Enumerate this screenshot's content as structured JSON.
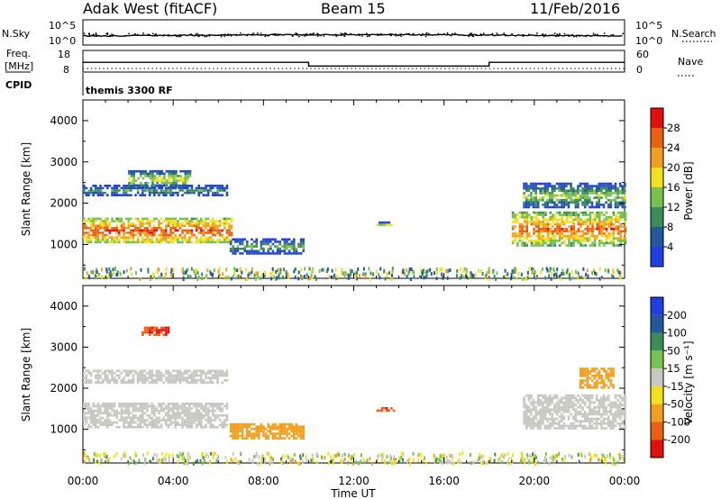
{
  "header": {
    "radar": "Adak West (fitACF)",
    "beam": "Beam 15",
    "date": "11/Feb/2016"
  },
  "nsky_panel": {
    "left_label": "N.Sky",
    "left_ticks": [
      "10^5",
      "10^0"
    ],
    "right_label": "N.Search",
    "right_ticks": [
      "10^5",
      "10^0"
    ]
  },
  "freq_panel": {
    "left_label_line1": "Freq.",
    "left_label_line2": "[MHz]",
    "left_ticks": [
      "18",
      "8"
    ],
    "right_label": "Nave",
    "right_ticks": [
      "60",
      "0"
    ]
  },
  "cpid": {
    "label": "CPID",
    "program": "themis 3300 RF"
  },
  "power_panel": {
    "ylabel": "Slant Range [km]",
    "yticks": [
      "1000",
      "2000",
      "3000",
      "4000"
    ],
    "colorbar_label": "Power [dB]",
    "colorbar_ticks": [
      "4",
      "8",
      "12",
      "16",
      "20",
      "24",
      "28"
    ],
    "colors": [
      "#1f3fe0",
      "#24589a",
      "#3c8c5a",
      "#78c050",
      "#f0e020",
      "#f0a020",
      "#e86010",
      "#e01010"
    ]
  },
  "velocity_panel": {
    "ylabel": "Slant Range [km]",
    "yticks": [
      "1000",
      "2000",
      "3000",
      "4000"
    ],
    "colorbar_label": "Velocity [m s⁻¹]",
    "colorbar_ticks": [
      "200",
      "100",
      "50",
      "15",
      "-15",
      "-50",
      "-100",
      "-200"
    ],
    "colors": [
      "#1f3fe0",
      "#24589a",
      "#3c8c5a",
      "#78c050",
      "#c8c8c0",
      "#f0e020",
      "#f0a020",
      "#e86010",
      "#e01010"
    ]
  },
  "x_axis": {
    "label": "Time UT",
    "ticks": [
      "00:00",
      "04:00",
      "08:00",
      "12:00",
      "16:00",
      "20:00",
      "00:00"
    ]
  },
  "chart_data": {
    "type": "heatmap",
    "x_unit": "hours UT",
    "x_range": [
      0,
      24
    ],
    "y_range_km": [
      180,
      4500
    ],
    "frequency_mhz": [
      {
        "from_hour": 0,
        "to_hour": 10,
        "value": 12.5
      },
      {
        "from_hour": 10,
        "to_hour": 18,
        "value": 10.8
      },
      {
        "from_hour": 18,
        "to_hour": 24,
        "value": 12.5
      }
    ],
    "nave_approx": 10,
    "power_regions": [
      {
        "t": [
          0,
          6.6
        ],
        "range_km": [
          1050,
          1650
        ],
        "power_db": 24
      },
      {
        "t": [
          0,
          6.4
        ],
        "range_km": [
          2200,
          2450
        ],
        "power_db": 8
      },
      {
        "t": [
          2.0,
          4.8
        ],
        "range_km": [
          2400,
          2800
        ],
        "power_db": 14
      },
      {
        "t": [
          6.5,
          9.8
        ],
        "range_km": [
          780,
          1150
        ],
        "power_db": 9
      },
      {
        "t": [
          13.0,
          13.8
        ],
        "range_km": [
          1450,
          1560
        ],
        "power_db": 12
      },
      {
        "t": [
          19.0,
          24.0
        ],
        "range_km": [
          1000,
          1800
        ],
        "power_db": 22
      },
      {
        "t": [
          19.5,
          24.0
        ],
        "range_km": [
          1900,
          2500
        ],
        "power_db": 12
      }
    ],
    "velocity_regions": [
      {
        "t": [
          0,
          6.4
        ],
        "range_km": [
          1050,
          1650
        ],
        "velocity_ms": 0
      },
      {
        "t": [
          0,
          6.4
        ],
        "range_km": [
          2150,
          2450
        ],
        "velocity_ms": 0
      },
      {
        "t": [
          2.6,
          3.8
        ],
        "range_km": [
          3300,
          3500
        ],
        "velocity_ms": -200
      },
      {
        "t": [
          6.5,
          9.8
        ],
        "range_km": [
          800,
          1150
        ],
        "velocity_ms": -60
      },
      {
        "t": [
          13.0,
          13.8
        ],
        "range_km": [
          1430,
          1540
        ],
        "velocity_ms": -200
      },
      {
        "t": [
          19.5,
          24.0
        ],
        "range_km": [
          1050,
          1850
        ],
        "velocity_ms": 0
      },
      {
        "t": [
          22.0,
          23.5
        ],
        "range_km": [
          2000,
          2500
        ],
        "velocity_ms": -60
      }
    ]
  }
}
